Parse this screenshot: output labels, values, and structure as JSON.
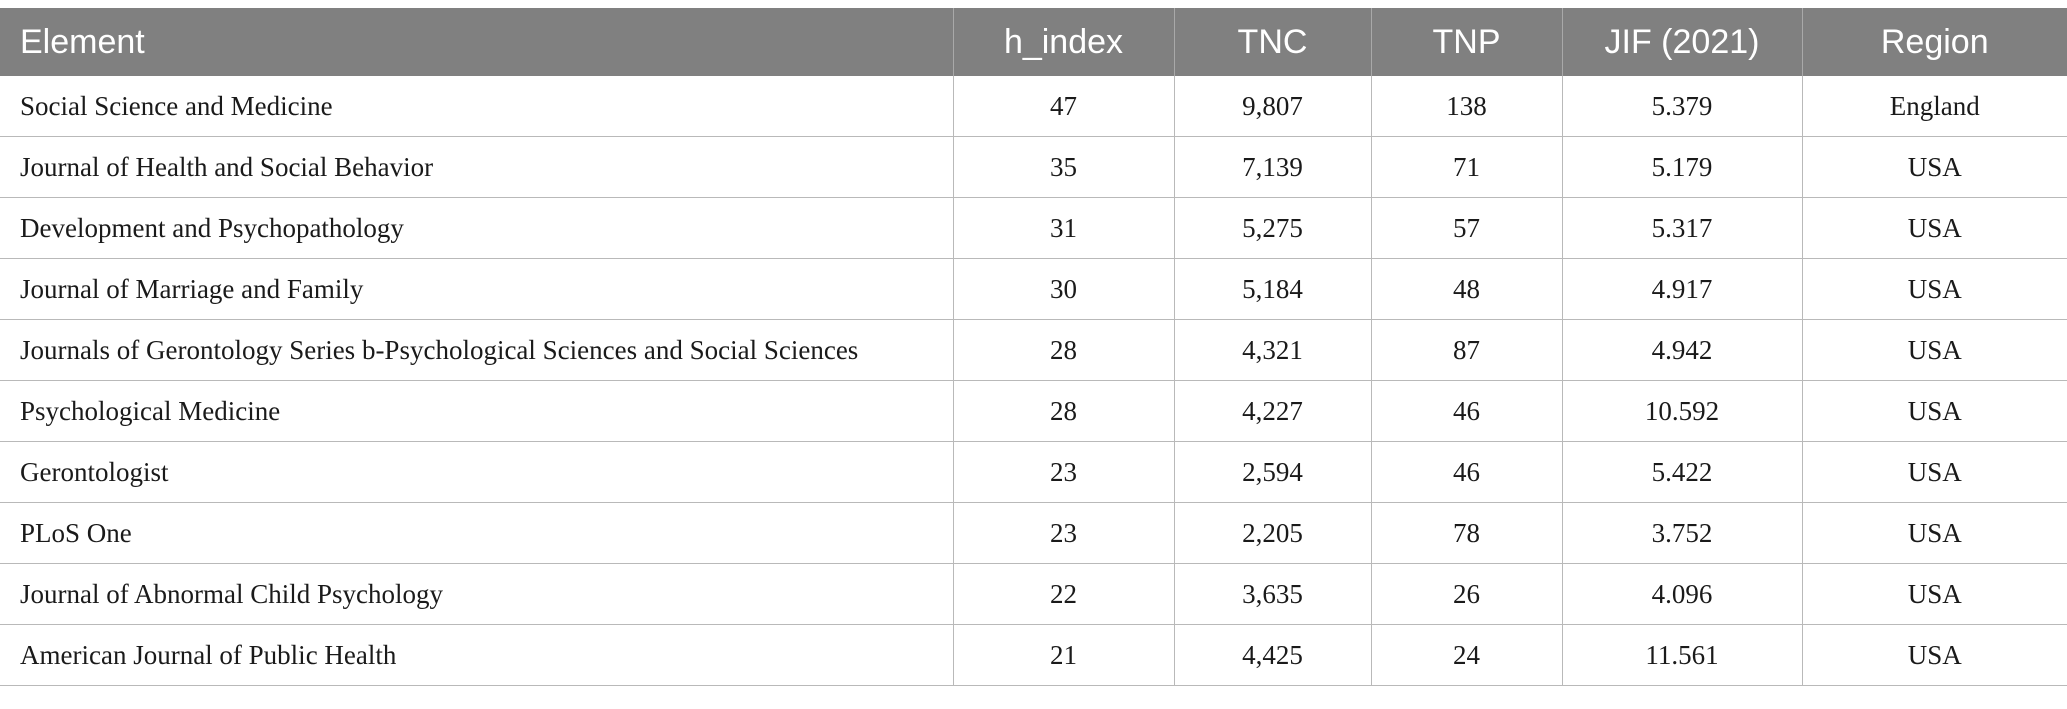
{
  "table": {
    "headers": [
      "Element",
      "h_index",
      "TNC",
      "TNP",
      "JIF (2021)",
      "Region"
    ],
    "rows": [
      [
        "Social Science and Medicine",
        "47",
        "9,807",
        "138",
        "5.379",
        "England"
      ],
      [
        "Journal of Health and Social Behavior",
        "35",
        "7,139",
        "71",
        "5.179",
        "USA"
      ],
      [
        "Development and Psychopathology",
        "31",
        "5,275",
        "57",
        "5.317",
        "USA"
      ],
      [
        "Journal of Marriage and Family",
        "30",
        "5,184",
        "48",
        "4.917",
        "USA"
      ],
      [
        "Journals of Gerontology Series b-Psychological Sciences and Social Sciences",
        "28",
        "4,321",
        "87",
        "4.942",
        "USA"
      ],
      [
        "Psychological Medicine",
        "28",
        "4,227",
        "46",
        "10.592",
        "USA"
      ],
      [
        "Gerontologist",
        "23",
        "2,594",
        "46",
        "5.422",
        "USA"
      ],
      [
        "PLoS One",
        "23",
        "2,205",
        "78",
        "3.752",
        "USA"
      ],
      [
        "Journal of Abnormal Child Psychology",
        "22",
        "3,635",
        "26",
        "4.096",
        "USA"
      ],
      [
        "American Journal of Public Health",
        "21",
        "4,425",
        "24",
        "11.561",
        "USA"
      ]
    ]
  },
  "colors": {
    "header_bg": "#808080",
    "header_text": "#ffffff",
    "grid_line": "#b9b9b9"
  }
}
